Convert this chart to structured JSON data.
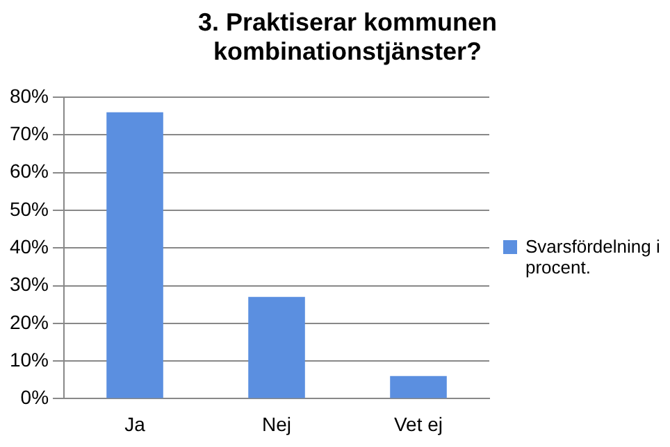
{
  "chart_data": {
    "type": "bar",
    "title": "3. Praktiserar kommunen kombinationstjänster?",
    "categories": [
      "Ja",
      "Nej",
      "Vet ej"
    ],
    "series": [
      {
        "name": "Svarsfördelning i procent.",
        "color": "#5b8fe0",
        "values": [
          76,
          27,
          6
        ]
      }
    ],
    "ylim": [
      0,
      80
    ],
    "yticks": [
      {
        "value": 0,
        "label": "0%"
      },
      {
        "value": 10,
        "label": "10%"
      },
      {
        "value": 20,
        "label": "20%"
      },
      {
        "value": 30,
        "label": "30%"
      },
      {
        "value": 40,
        "label": "40%"
      },
      {
        "value": 50,
        "label": "50%"
      },
      {
        "value": 60,
        "label": "60%"
      },
      {
        "value": 70,
        "label": "70%"
      },
      {
        "value": 80,
        "label": "80%"
      }
    ],
    "grid": "y",
    "legend": "right"
  }
}
